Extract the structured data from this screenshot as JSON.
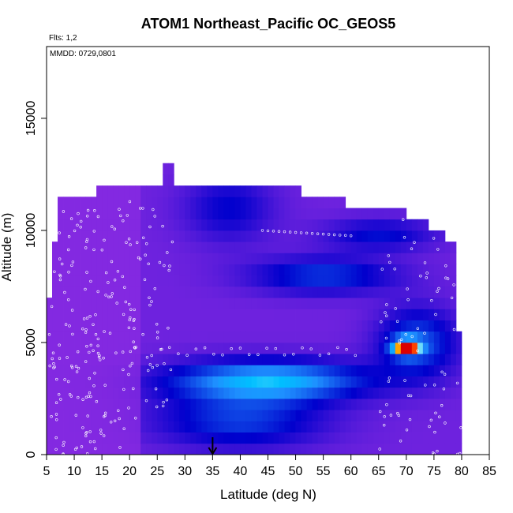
{
  "chart_data": {
    "type": "heatmap",
    "title": "ATOM1 Northeast_Pacific OC_GEOS5",
    "annotations": {
      "flights": "Flts: 1,2",
      "dates": "MMDD: 0729,0801"
    },
    "xlabel": "Latitude (deg N)",
    "ylabel": "Altitude (m)",
    "xlim": [
      5,
      85
    ],
    "ylim": [
      0,
      18200
    ],
    "x_ticks": [
      5,
      10,
      15,
      20,
      25,
      30,
      35,
      40,
      45,
      50,
      55,
      60,
      65,
      70,
      75,
      80,
      85
    ],
    "y_ticks": [
      0,
      5000,
      10000,
      15000
    ],
    "grid": false,
    "legend": "none",
    "cell_size": {
      "lat": 1,
      "alt": 500
    },
    "colors": {
      "low": "#8a2be2",
      "mid": "#0000cd",
      "high": "#00bfff",
      "peak_yellow": "#ffd700",
      "peak_red": "#ff0000",
      "track_points": "#ffffff",
      "axis": "#000000"
    },
    "profile_columns": [
      {
        "lat_range": [
          5,
          6
        ],
        "top_alt": 7000
      },
      {
        "lat_range": [
          6,
          7
        ],
        "top_alt": 9500
      },
      {
        "lat_range": [
          7,
          9
        ],
        "top_alt": 11500
      },
      {
        "lat_range": [
          14,
          24
        ],
        "top_alt": 12000
      },
      {
        "lat_range": [
          26,
          28
        ],
        "top_alt": 13000
      },
      {
        "lat_range": [
          65,
          69
        ],
        "top_alt": 11000
      },
      {
        "lat_range": [
          77,
          79
        ],
        "top_alt": 9500
      },
      {
        "lat_range": [
          79,
          80
        ],
        "top_alt": 5500
      }
    ],
    "features": [
      {
        "name": "mid-level plume",
        "lat_range": [
          25,
          60
        ],
        "alt_range": [
          2500,
          4500
        ],
        "level": "high"
      },
      {
        "name": "upper plume",
        "lat_range": [
          45,
          65
        ],
        "alt_range": [
          7500,
          8500
        ],
        "level": "moderate"
      },
      {
        "name": "peak",
        "lat_center": 70,
        "alt_range": [
          4500,
          5000
        ],
        "level": "maximum"
      }
    ],
    "marker": {
      "lat": 35,
      "alt": 0,
      "symbol": "down-arrow"
    }
  }
}
